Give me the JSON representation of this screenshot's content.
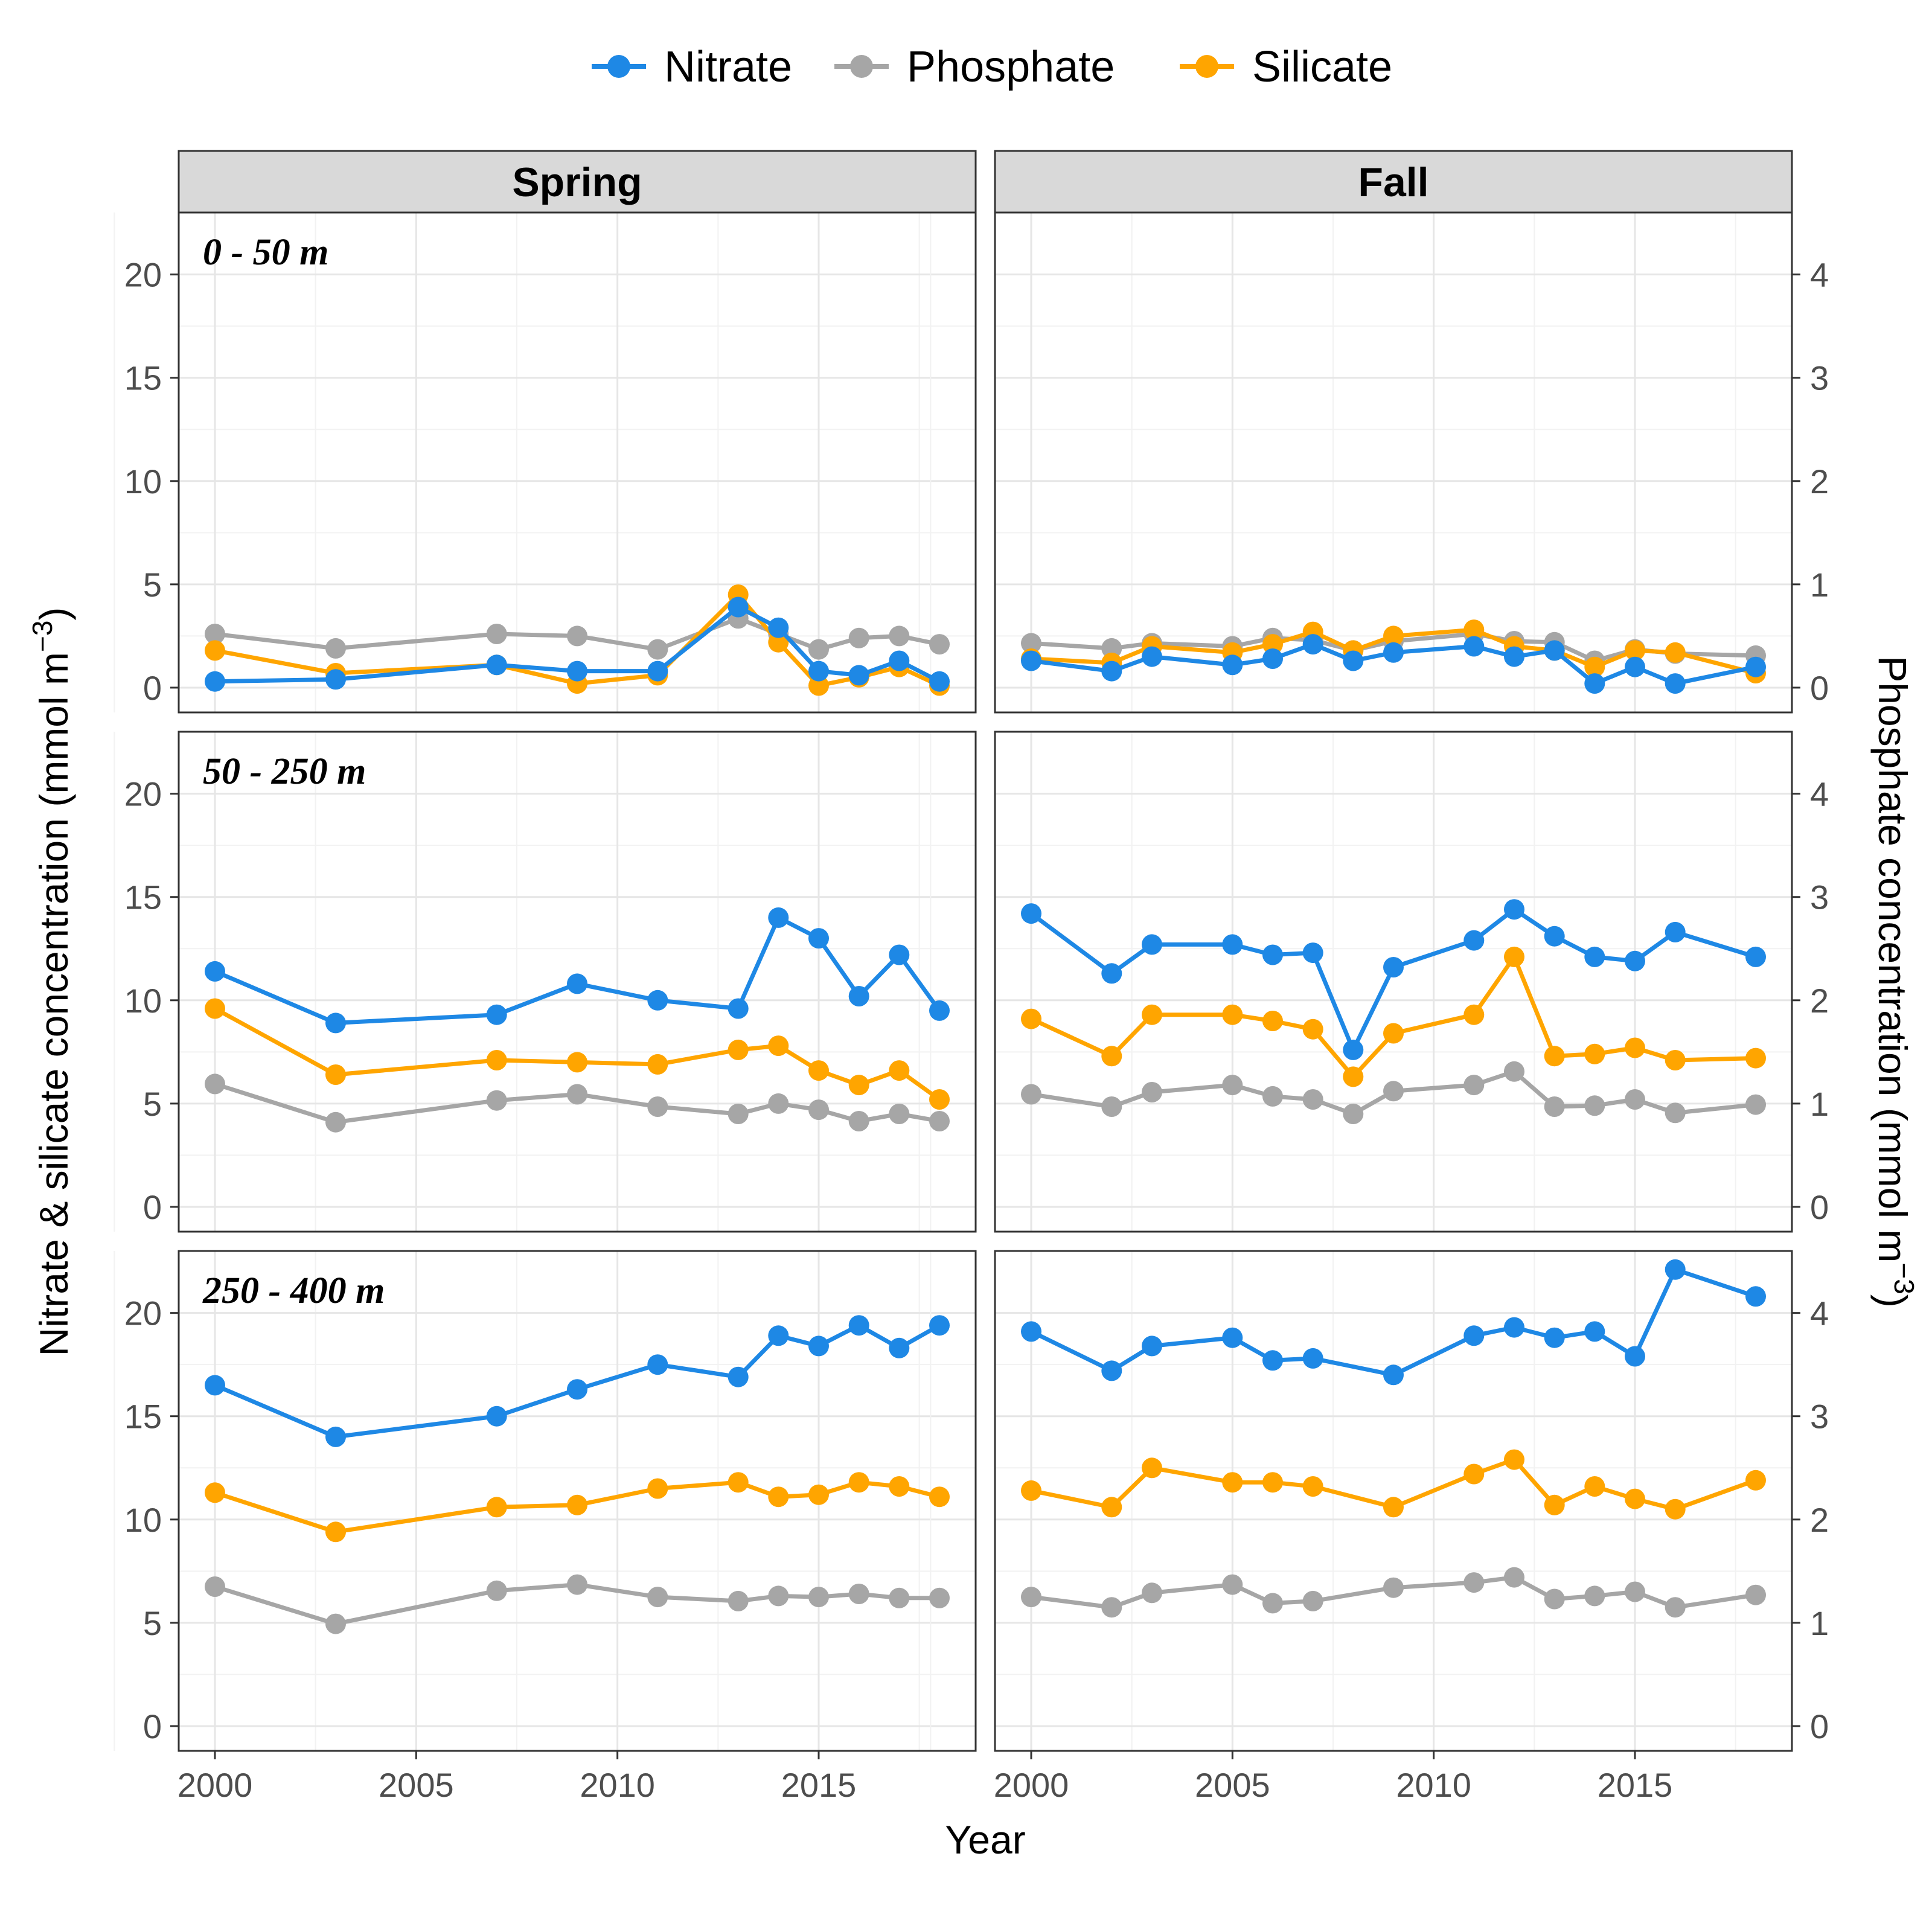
{
  "chart_data": {
    "type": "line",
    "xlabel": "Year",
    "ylabel_left_main": "Nitrate & silicate concentration  (mmol m",
    "ylabel_left_sup": "−3",
    "ylabel_left_end": ")",
    "ylabel_right_main": "Phosphate concentration  (mmol m",
    "ylabel_right_sup": "−3",
    "ylabel_right_end": ")",
    "xlim": [
      1999.1,
      2018.9
    ],
    "xticks": [
      2000,
      2005,
      2010,
      2015
    ],
    "xtick_labels": [
      "2000",
      "2005",
      "2010",
      "2015"
    ],
    "ylim_left": [
      -1.2,
      23.0
    ],
    "yticks_left": [
      0,
      5,
      10,
      15,
      20
    ],
    "ytick_labels_left": [
      "0",
      "5",
      "10",
      "15",
      "20"
    ],
    "ylim_right": [
      -0.24,
      4.6
    ],
    "yticks_right": [
      0,
      1,
      2,
      3,
      4
    ],
    "ytick_labels_right": [
      "0",
      "1",
      "2",
      "3",
      "4"
    ],
    "phosphate_axis_scale": 5,
    "grid": true,
    "legend_position": "top",
    "legend": [
      {
        "name": "Nitrate",
        "color": "#1E88E5"
      },
      {
        "name": "Phosphate",
        "color": "#A6A6A6"
      },
      {
        "name": "Silicate",
        "color": "#FFA500"
      }
    ],
    "columns": [
      "Spring",
      "Fall"
    ],
    "rows": [
      "0 - 50 m",
      "50 - 250 m",
      "250 - 400 m"
    ],
    "panels": [
      {
        "season": "Spring",
        "depth": "0 - 50 m",
        "x": [
          2000,
          2003,
          2007,
          2009,
          2011,
          2013,
          2014,
          2015,
          2016,
          2017,
          2018
        ],
        "series": [
          {
            "name": "Nitrate",
            "axis": "left",
            "values": [
              0.3,
              0.4,
              1.1,
              0.8,
              0.8,
              3.9,
              2.9,
              0.8,
              0.6,
              1.3,
              0.3
            ]
          },
          {
            "name": "Phosphate",
            "axis": "right",
            "values": [
              0.52,
              0.38,
              0.52,
              0.5,
              0.37,
              0.67,
              0.52,
              0.37,
              0.48,
              0.5,
              0.42
            ]
          },
          {
            "name": "Silicate",
            "axis": "left",
            "values": [
              1.8,
              0.7,
              1.1,
              0.2,
              0.6,
              4.5,
              2.2,
              0.1,
              0.5,
              1.0,
              0.1
            ]
          }
        ]
      },
      {
        "season": "Fall",
        "depth": "0 - 50 m",
        "x": [
          2000,
          2002,
          2003,
          2005,
          2006,
          2007,
          2008,
          2009,
          2011,
          2012,
          2013,
          2014,
          2015,
          2016,
          2018
        ],
        "series": [
          {
            "name": "Nitrate",
            "axis": "left",
            "values": [
              1.3,
              0.8,
              1.5,
              1.1,
              1.4,
              2.1,
              1.3,
              1.7,
              2.0,
              1.5,
              1.8,
              0.2,
              1.0,
              0.2,
              1.0
            ]
          },
          {
            "name": "Phosphate",
            "axis": "right",
            "values": [
              0.43,
              0.38,
              0.43,
              0.4,
              0.48,
              0.46,
              0.36,
              0.45,
              0.52,
              0.45,
              0.44,
              0.26,
              0.37,
              0.33,
              0.31
            ]
          },
          {
            "name": "Silicate",
            "axis": "left",
            "values": [
              1.4,
              1.2,
              2.0,
              1.7,
              2.1,
              2.7,
              1.8,
              2.5,
              2.8,
              2.0,
              1.8,
              1.0,
              1.8,
              1.7,
              0.7
            ]
          }
        ]
      },
      {
        "season": "Spring",
        "depth": "50 - 250 m",
        "x": [
          2000,
          2003,
          2007,
          2009,
          2011,
          2013,
          2014,
          2015,
          2016,
          2017,
          2018
        ],
        "series": [
          {
            "name": "Nitrate",
            "axis": "left",
            "values": [
              11.4,
              8.9,
              9.3,
              10.8,
              10.0,
              9.6,
              14.0,
              13.0,
              10.2,
              12.2,
              9.5
            ]
          },
          {
            "name": "Phosphate",
            "axis": "right",
            "values": [
              1.19,
              0.82,
              1.03,
              1.09,
              0.97,
              0.9,
              1.0,
              0.94,
              0.83,
              0.9,
              0.83
            ]
          },
          {
            "name": "Silicate",
            "axis": "left",
            "values": [
              9.6,
              6.4,
              7.1,
              7.0,
              6.9,
              7.6,
              7.8,
              6.6,
              5.9,
              6.6,
              5.2
            ]
          }
        ]
      },
      {
        "season": "Fall",
        "depth": "50 - 250 m",
        "x": [
          2000,
          2002,
          2003,
          2005,
          2006,
          2007,
          2008,
          2009,
          2011,
          2012,
          2013,
          2014,
          2015,
          2016,
          2018
        ],
        "series": [
          {
            "name": "Nitrate",
            "axis": "left",
            "values": [
              14.2,
              11.3,
              12.7,
              12.7,
              12.2,
              12.3,
              7.6,
              11.6,
              12.9,
              14.4,
              13.1,
              12.1,
              11.9,
              13.3,
              12.1
            ]
          },
          {
            "name": "Phosphate",
            "axis": "right",
            "values": [
              1.09,
              0.97,
              1.11,
              1.18,
              1.07,
              1.04,
              0.9,
              1.12,
              1.18,
              1.31,
              0.97,
              0.98,
              1.04,
              0.91,
              0.99
            ]
          },
          {
            "name": "Silicate",
            "axis": "left",
            "values": [
              9.1,
              7.3,
              9.3,
              9.3,
              9.0,
              8.6,
              6.3,
              8.4,
              9.3,
              12.1,
              7.3,
              7.4,
              7.7,
              7.1,
              7.2
            ]
          }
        ]
      },
      {
        "season": "Spring",
        "depth": "250 - 400 m",
        "x": [
          2000,
          2003,
          2007,
          2009,
          2011,
          2013,
          2014,
          2015,
          2016,
          2017,
          2018
        ],
        "series": [
          {
            "name": "Nitrate",
            "axis": "left",
            "values": [
              16.5,
              14.0,
              15.0,
              16.3,
              17.5,
              16.9,
              18.9,
              18.4,
              19.4,
              18.3,
              19.4
            ]
          },
          {
            "name": "Phosphate",
            "axis": "right",
            "values": [
              1.35,
              0.99,
              1.31,
              1.37,
              1.25,
              1.21,
              1.26,
              1.25,
              1.28,
              1.24,
              1.24
            ]
          },
          {
            "name": "Silicate",
            "axis": "left",
            "values": [
              11.3,
              9.4,
              10.6,
              10.7,
              11.5,
              11.8,
              11.1,
              11.2,
              11.8,
              11.6,
              11.1
            ]
          }
        ]
      },
      {
        "season": "Fall",
        "depth": "250 - 400 m",
        "x": [
          2000,
          2002,
          2003,
          2005,
          2006,
          2007,
          2009,
          2011,
          2012,
          2013,
          2014,
          2015,
          2016,
          2018
        ],
        "series": [
          {
            "name": "Nitrate",
            "axis": "left",
            "values": [
              19.1,
              17.2,
              18.4,
              18.8,
              17.7,
              17.8,
              17.0,
              18.9,
              19.3,
              18.8,
              19.1,
              17.9,
              22.1,
              20.8
            ]
          },
          {
            "name": "Phosphate",
            "axis": "right",
            "values": [
              1.25,
              1.15,
              1.29,
              1.37,
              1.19,
              1.21,
              1.34,
              1.39,
              1.44,
              1.23,
              1.26,
              1.3,
              1.15,
              1.27
            ]
          },
          {
            "name": "Silicate",
            "axis": "left",
            "values": [
              11.4,
              10.6,
              12.5,
              11.8,
              11.8,
              11.6,
              10.6,
              12.2,
              12.9,
              10.7,
              11.6,
              11.0,
              10.5,
              11.9
            ]
          }
        ]
      }
    ]
  }
}
